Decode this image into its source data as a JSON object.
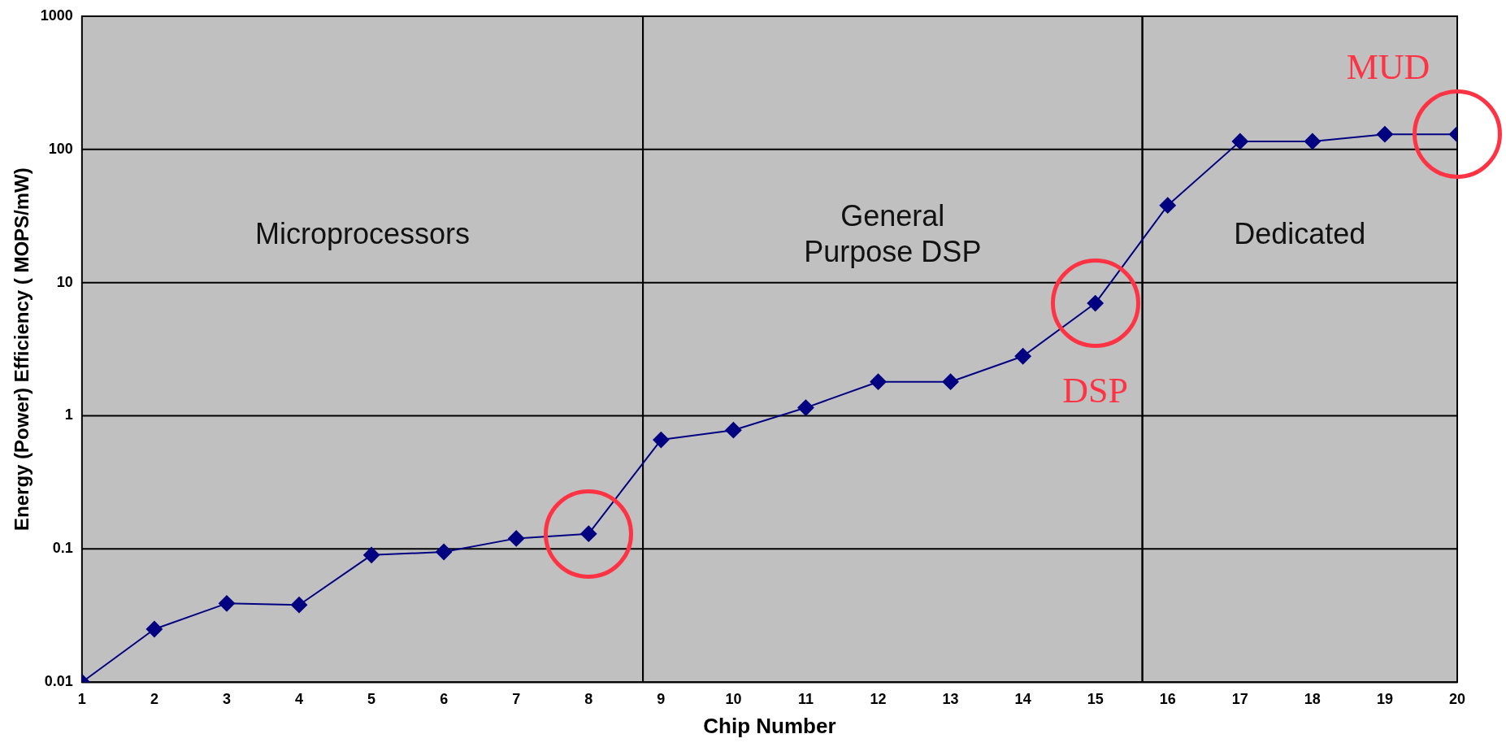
{
  "chart_data": {
    "type": "line",
    "xlabel": "Chip Number",
    "ylabel": "Energy (Power) Efficiency ( MOPS/mW)",
    "x": [
      1,
      2,
      3,
      4,
      5,
      6,
      7,
      8,
      9,
      10,
      11,
      12,
      13,
      14,
      15,
      16,
      17,
      18,
      19,
      20
    ],
    "values": [
      0.01,
      0.025,
      0.039,
      0.038,
      0.09,
      0.095,
      0.12,
      0.13,
      0.66,
      0.78,
      1.15,
      1.8,
      1.8,
      2.8,
      7,
      38,
      115,
      115,
      130,
      130
    ],
    "color": "#000080",
    "marker": "diamond",
    "line_style": "solid",
    "log": "y",
    "xlim": [
      1,
      20
    ],
    "xticks": [
      1,
      2,
      3,
      4,
      5,
      6,
      7,
      8,
      9,
      10,
      11,
      12,
      13,
      14,
      15,
      16,
      17,
      18,
      19,
      20
    ],
    "ylim": [
      0.01,
      1000
    ],
    "yticks": [
      0.01,
      0.1,
      1,
      10,
      100,
      1000
    ],
    "grid": "y",
    "legend": false,
    "bands": [
      {
        "axis": "x",
        "from": 1,
        "to": 8.75,
        "label": "Microprocessors",
        "color": "#c0c0c0"
      },
      {
        "axis": "x",
        "from": 8.75,
        "to": 15.65,
        "label": "General\nPurpose DSP",
        "color": "#c0c0c0"
      },
      {
        "axis": "x",
        "from": 15.65,
        "to": 20,
        "label": "Dedicated",
        "color": "#c0c0c0"
      }
    ],
    "annotations": [
      "DSP",
      "MUD"
    ]
  }
}
